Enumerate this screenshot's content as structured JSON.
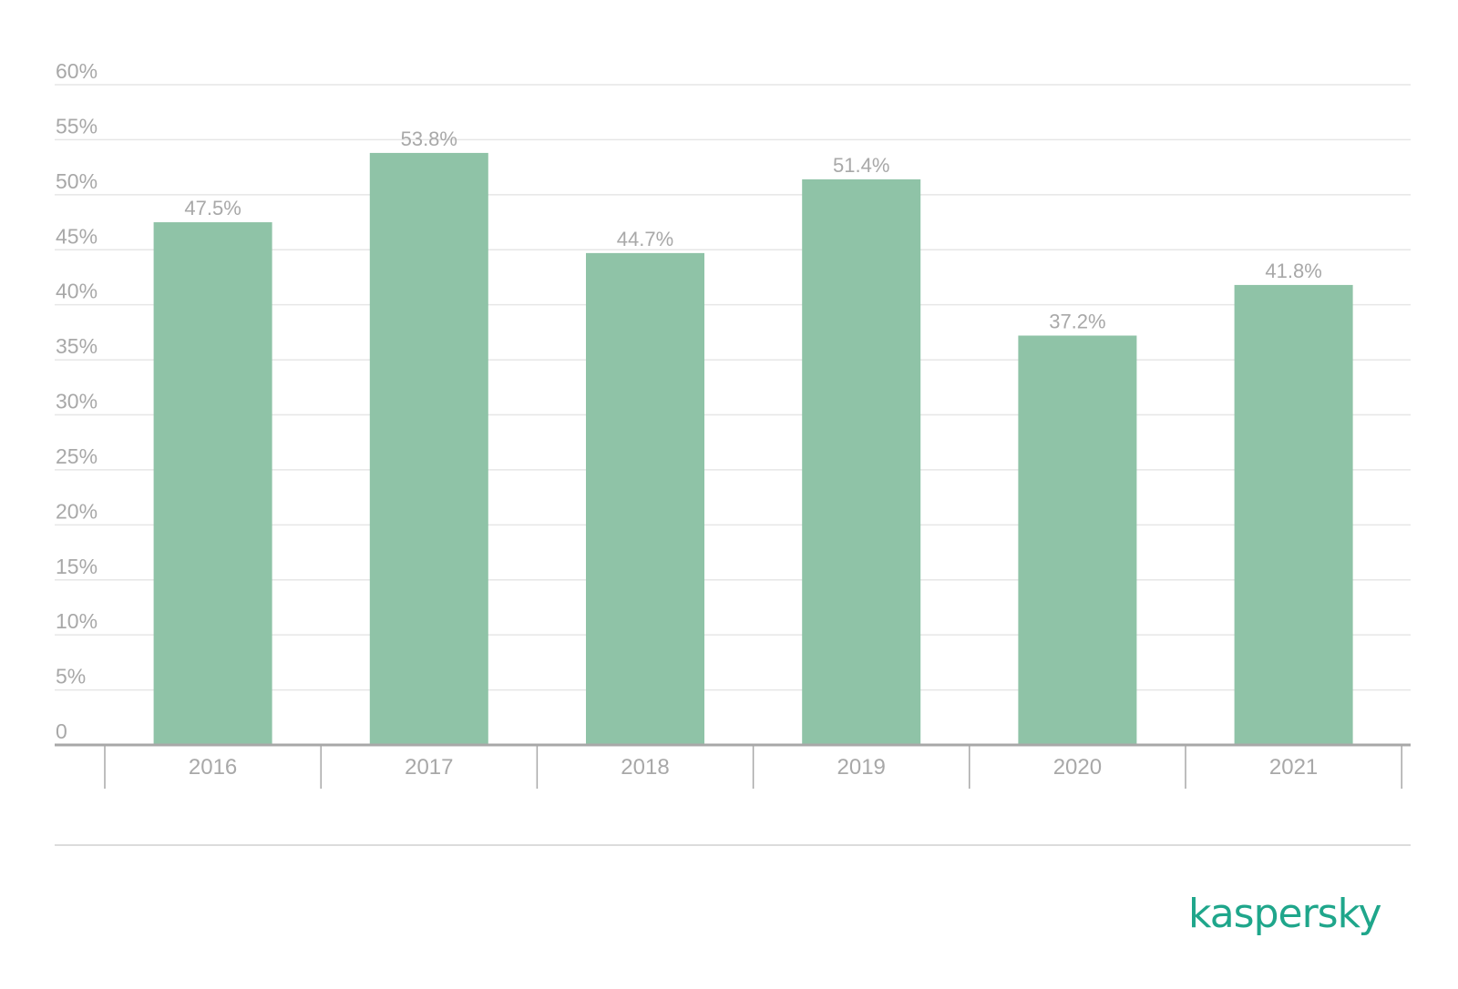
{
  "brand": {
    "logo_text": "kaspersky",
    "color": "#1fa68b"
  },
  "chart_data": {
    "type": "bar",
    "title": "",
    "xlabel": "",
    "ylabel": "",
    "categories": [
      "2016",
      "2017",
      "2018",
      "2019",
      "2020",
      "2021"
    ],
    "values": [
      47.5,
      53.8,
      44.7,
      51.4,
      37.2,
      41.8
    ],
    "value_labels": [
      "47.5%",
      "53.8%",
      "44.7%",
      "51.4%",
      "37.2%",
      "41.8%"
    ],
    "ylim": [
      0,
      60
    ],
    "yticks": [
      0,
      5,
      10,
      15,
      20,
      25,
      30,
      35,
      40,
      45,
      50,
      55,
      60
    ],
    "ytick_labels": [
      "0",
      "5%",
      "10%",
      "15%",
      "20%",
      "25%",
      "30%",
      "35%",
      "40%",
      "45%",
      "50%",
      "55%",
      "60%"
    ],
    "grid": true,
    "legend": "none",
    "colors": {
      "bar": "#8fc3a7",
      "grid": "#e6e6e6",
      "axis": "#a8a8a8",
      "text": "#a8a8a8"
    }
  }
}
